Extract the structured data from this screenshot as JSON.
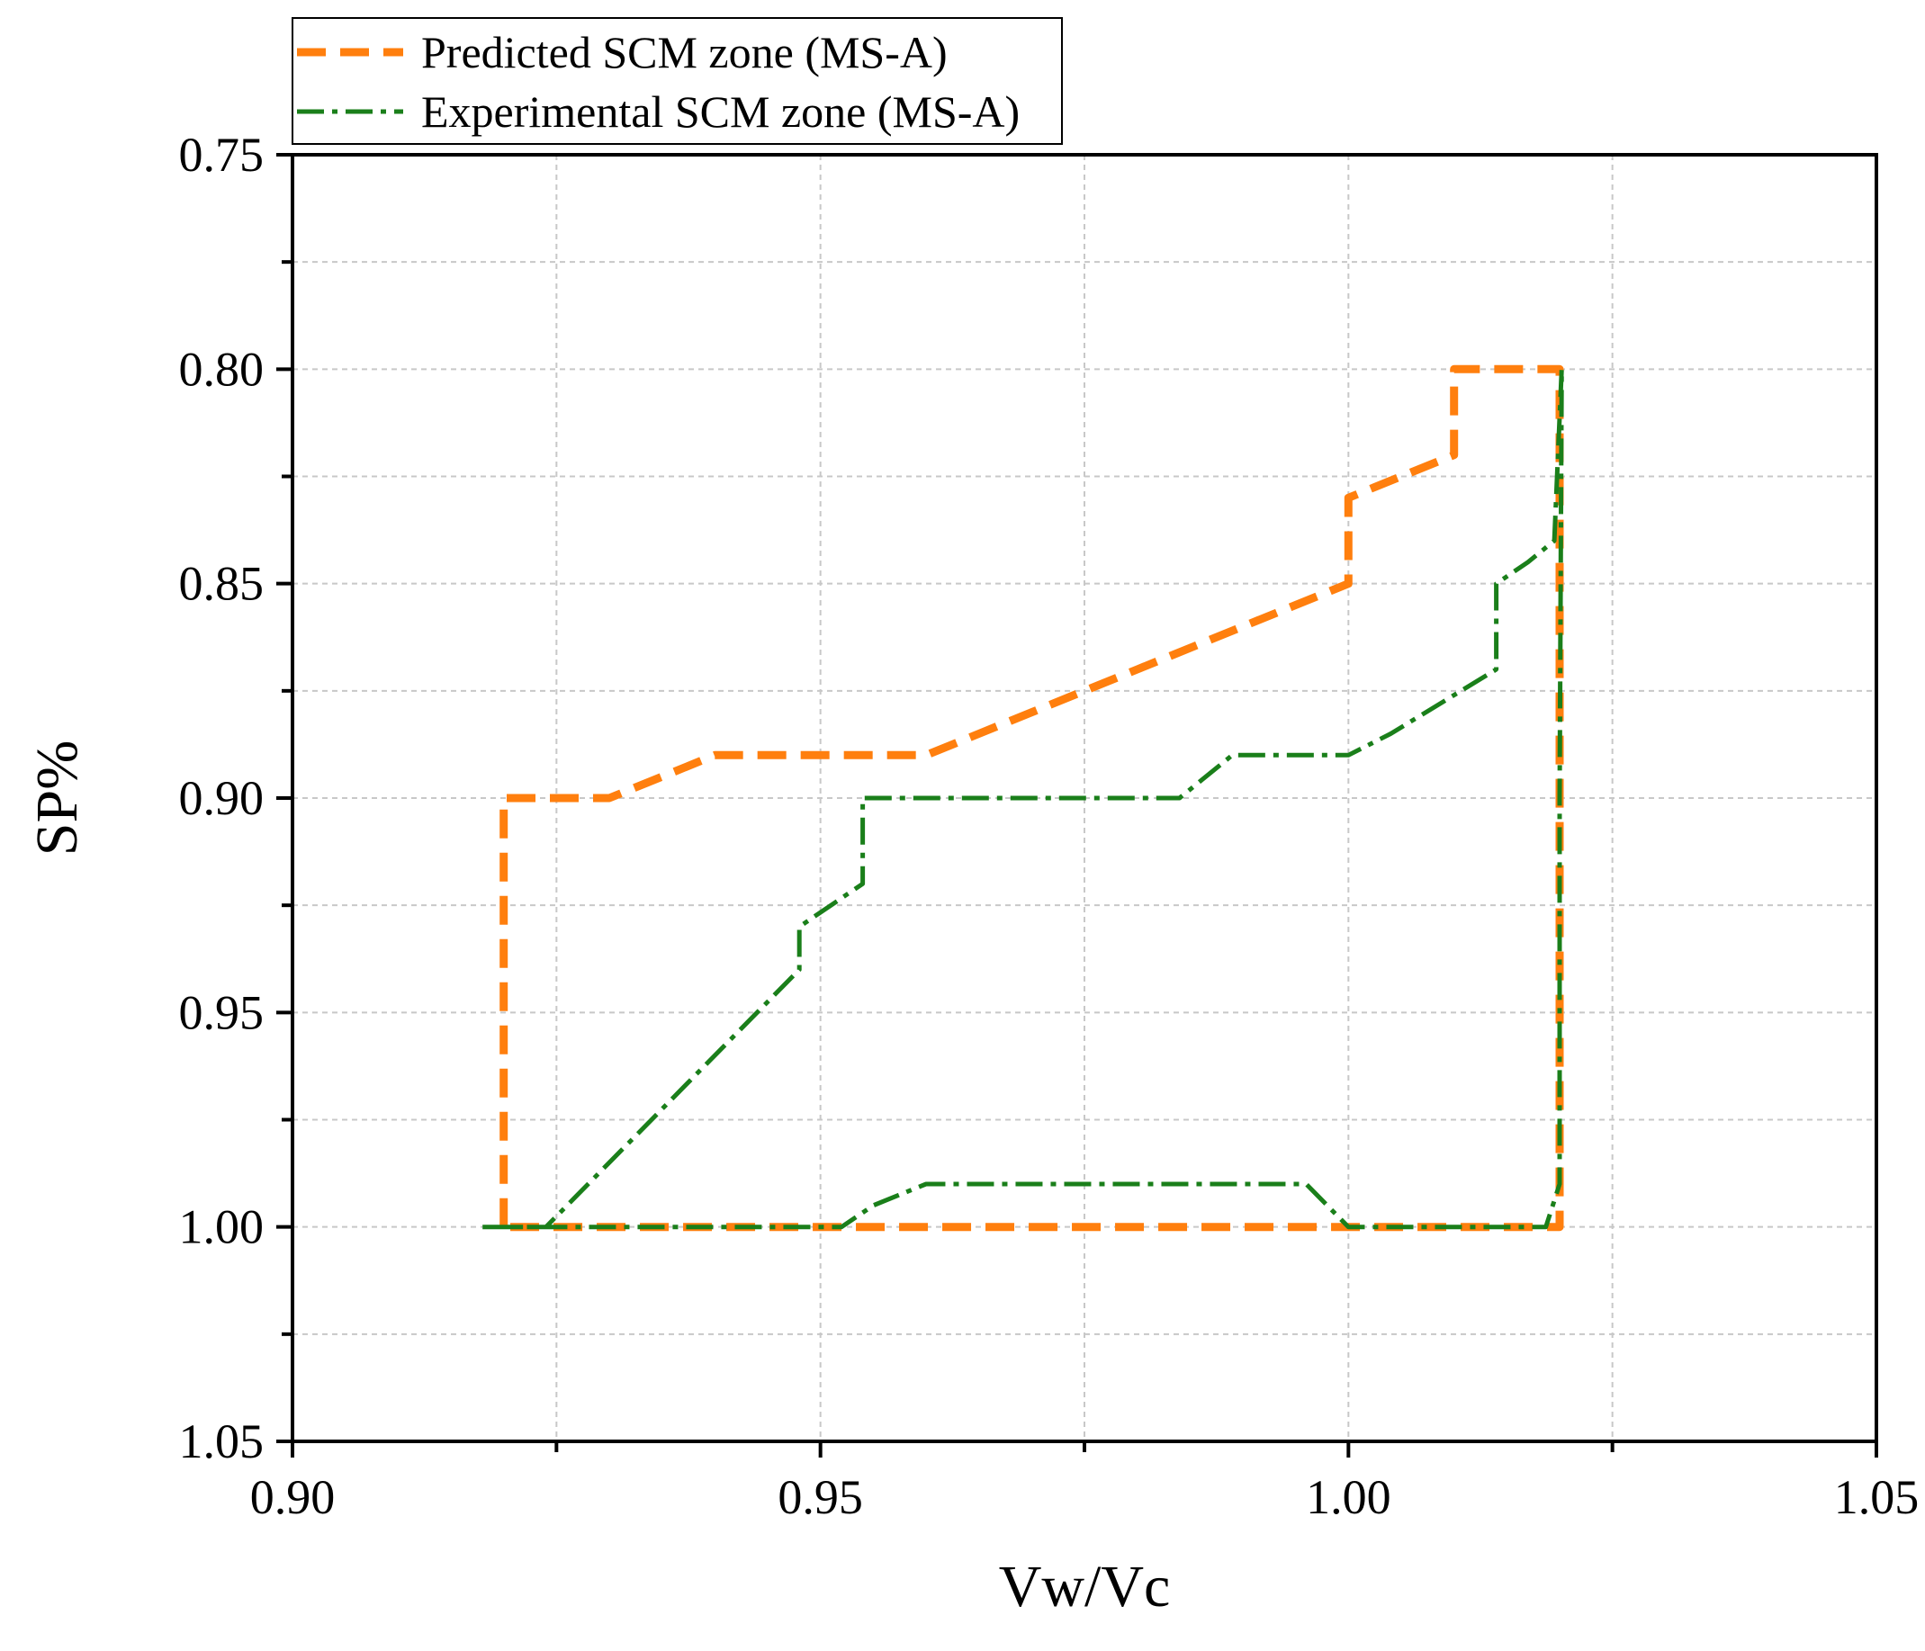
{
  "chart_data": {
    "type": "line",
    "title": "",
    "xlabel": "Vw/Vc",
    "ylabel": "SP%",
    "xlim": [
      0.9,
      1.05
    ],
    "ylim": [
      0.75,
      1.05
    ],
    "y_inverted": true,
    "grid": true,
    "legend_position": "top-left, above plot",
    "x_ticks": [
      0.9,
      0.95,
      1.0,
      1.05
    ],
    "x_tick_labels": [
      "0.90",
      "0.95",
      "1.00",
      "1.05"
    ],
    "y_ticks": [
      0.75,
      0.8,
      0.85,
      0.9,
      0.95,
      1.0,
      1.05
    ],
    "y_tick_labels": [
      "0.75",
      "0.80",
      "0.85",
      "0.90",
      "0.95",
      "1.00",
      "1.05"
    ],
    "series": [
      {
        "name": "Predicted SCM zone (MS-A)",
        "color": "#ff7f0e",
        "style": "dash",
        "x": [
          0.92,
          0.92,
          0.93,
          0.935,
          0.94,
          0.96,
          0.965,
          0.98,
          0.99,
          1.0,
          1.0,
          1.005,
          1.01,
          1.01,
          1.015,
          1.02,
          1.02,
          1.019,
          0.92
        ],
        "y": [
          1.0,
          0.9,
          0.9,
          0.895,
          0.89,
          0.89,
          0.885,
          0.87,
          0.86,
          0.85,
          0.83,
          0.825,
          0.82,
          0.8,
          0.8,
          0.8,
          1.0,
          1.0,
          1.0
        ]
      },
      {
        "name": "Experimental SCM zone (MS-A)",
        "color": "#1a7f1a",
        "style": "dashdot",
        "x": [
          0.918,
          0.924,
          0.948,
          0.948,
          0.954,
          0.954,
          0.984,
          0.989,
          1.0,
          1.004,
          1.014,
          1.014,
          1.017,
          1.0195,
          1.0202,
          1.02,
          1.02,
          1.0187,
          1.0,
          0.996,
          0.992,
          0.975,
          0.96,
          0.955,
          0.952,
          0.918
        ],
        "y": [
          1.0,
          1.0,
          0.94,
          0.93,
          0.92,
          0.9,
          0.9,
          0.89,
          0.89,
          0.885,
          0.87,
          0.85,
          0.845,
          0.84,
          0.8,
          0.9,
          0.99,
          1.0,
          1.0,
          0.99,
          0.99,
          0.99,
          0.99,
          0.995,
          1.0,
          1.0
        ]
      }
    ]
  }
}
